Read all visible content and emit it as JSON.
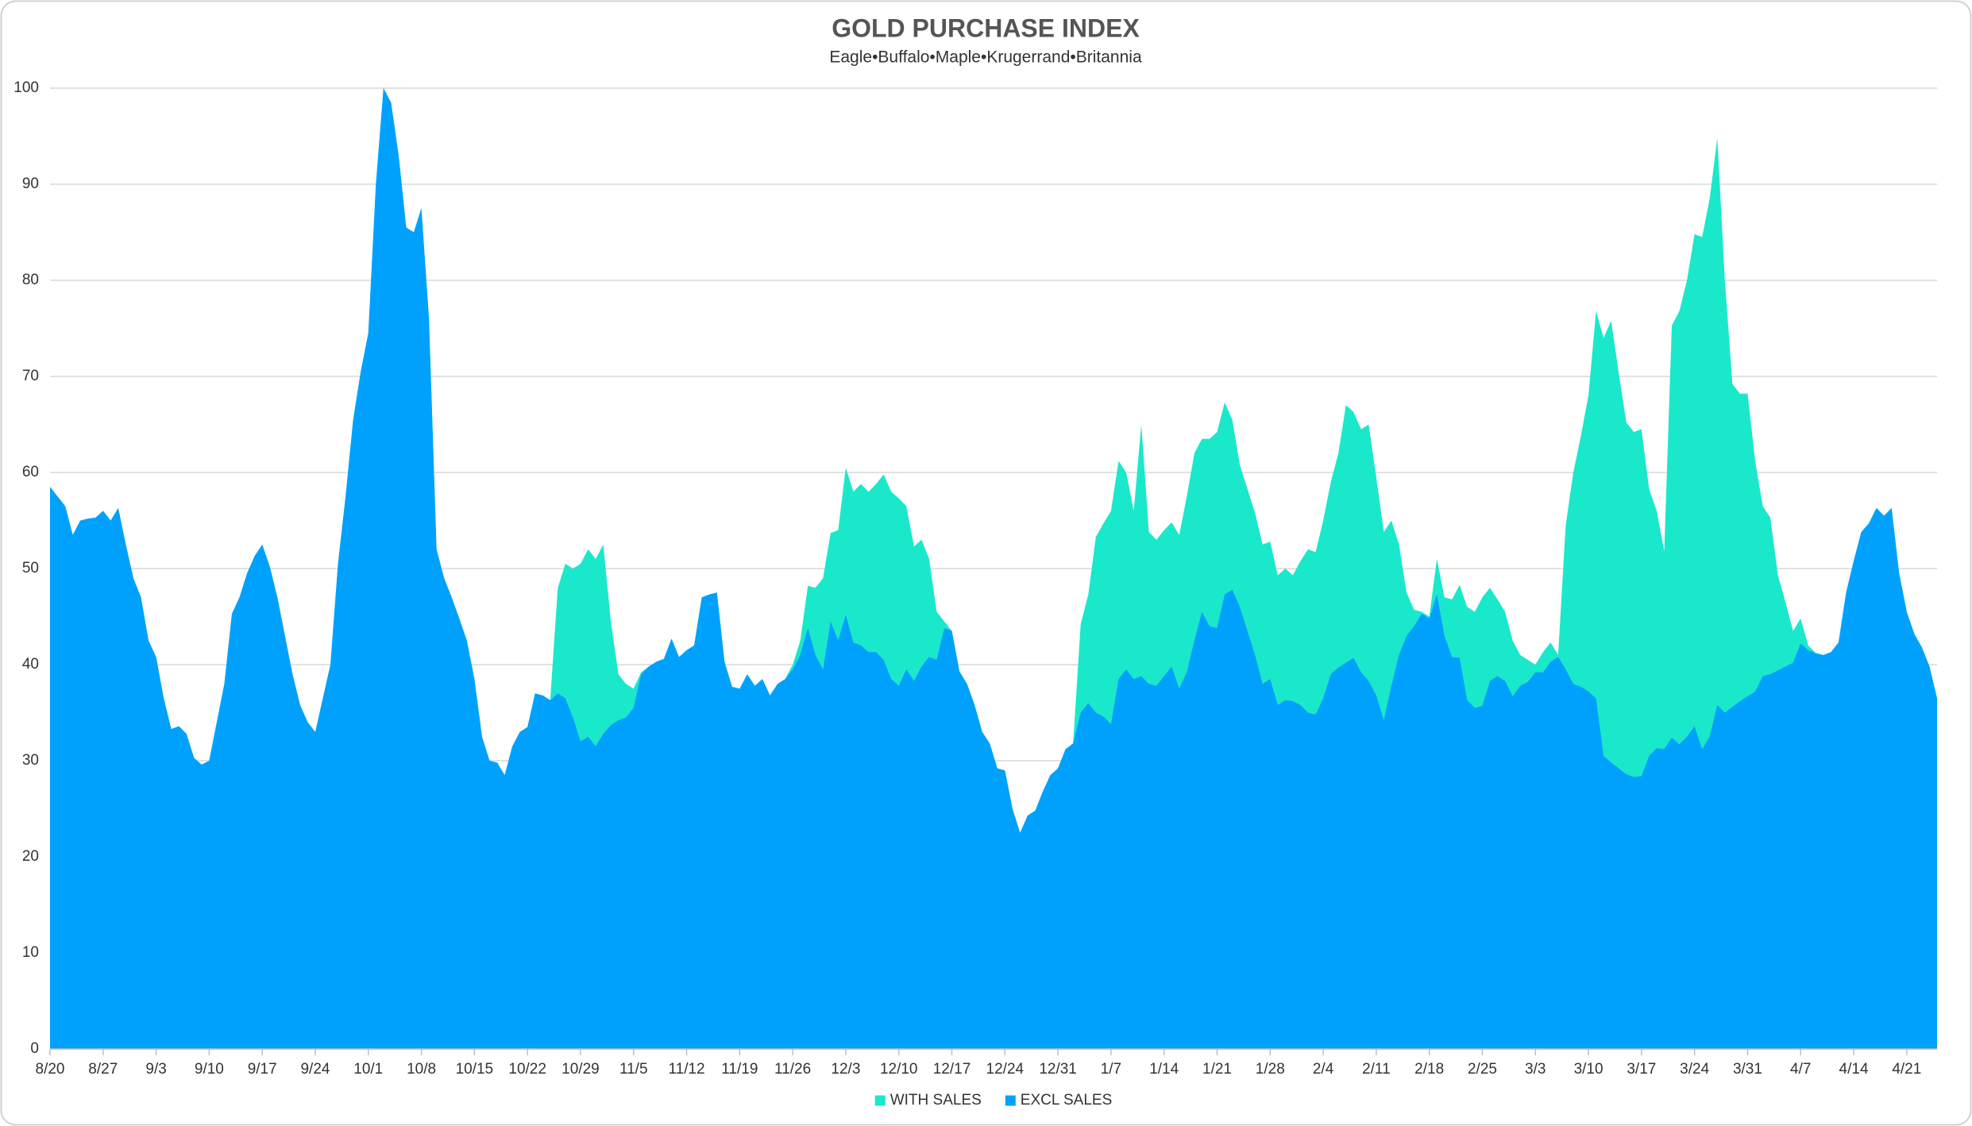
{
  "chart_data": {
    "type": "area",
    "title": "GOLD PURCHASE INDEX",
    "subtitle": "Eagle•Buffalo•Maple•Krugerrand•Britannia",
    "categories": [
      "8/20",
      null,
      null,
      null,
      null,
      null,
      null,
      "8/27",
      null,
      null,
      null,
      null,
      null,
      null,
      "9/3",
      null,
      null,
      null,
      null,
      null,
      null,
      "9/10",
      null,
      null,
      null,
      null,
      null,
      null,
      "9/17",
      null,
      null,
      null,
      null,
      null,
      null,
      "9/24",
      null,
      null,
      null,
      null,
      null,
      null,
      "10/1",
      null,
      null,
      null,
      null,
      null,
      null,
      "10/8",
      null,
      null,
      null,
      null,
      null,
      null,
      "10/15",
      null,
      null,
      null,
      null,
      null,
      null,
      "10/22",
      null,
      null,
      null,
      null,
      null,
      null,
      "10/29",
      null,
      null,
      null,
      null,
      null,
      null,
      "11/5",
      null,
      null,
      null,
      null,
      null,
      null,
      "11/12",
      null,
      null,
      null,
      null,
      null,
      null,
      "11/19",
      null,
      null,
      null,
      null,
      null,
      null,
      "11/26",
      null,
      null,
      null,
      null,
      null,
      null,
      "12/3",
      null,
      null,
      null,
      null,
      null,
      null,
      "12/10",
      null,
      null,
      null,
      null,
      null,
      null,
      "12/17",
      null,
      null,
      null,
      null,
      null,
      null,
      "12/24",
      null,
      null,
      null,
      null,
      null,
      null,
      "12/31",
      null,
      null,
      null,
      null,
      null,
      null,
      "1/7",
      null,
      null,
      null,
      null,
      null,
      null,
      "1/14",
      null,
      null,
      null,
      null,
      null,
      null,
      "1/21",
      null,
      null,
      null,
      null,
      null,
      null,
      "1/28",
      null,
      null,
      null,
      null,
      null,
      null,
      "2/4",
      null,
      null,
      null,
      null,
      null,
      null,
      "2/11",
      null,
      null,
      null,
      null,
      null,
      null,
      "2/18",
      null,
      null,
      null,
      null,
      null,
      null,
      "2/25",
      null,
      null,
      null,
      null,
      null,
      null,
      "3/3",
      null,
      null,
      null,
      null,
      null,
      null,
      "3/10",
      null,
      null,
      null,
      null,
      null,
      null,
      "3/17",
      null,
      null,
      null,
      null,
      null,
      null,
      "3/24",
      null,
      null,
      null,
      null,
      null,
      null,
      "3/31",
      null,
      null,
      null,
      null,
      null,
      null,
      "4/7",
      null,
      null,
      null,
      null,
      null,
      null,
      "4/14",
      null,
      null,
      null,
      null,
      null,
      null,
      "4/21",
      null,
      null,
      null,
      null
    ],
    "series": [
      {
        "name": "WITH SALES",
        "color": "#1ae8cb",
        "values": [
          58.5,
          57.5,
          56.5,
          53.5,
          55,
          55.2,
          55.3,
          56,
          55,
          56.3,
          52.5,
          49,
          47,
          42.5,
          40.8,
          36.5,
          33.3,
          33.6,
          32.8,
          30.3,
          29.6,
          30,
          34,
          38,
          45.3,
          47,
          49.5,
          51.3,
          52.5,
          50.2,
          47,
          43,
          39,
          35.8,
          34,
          33,
          36.5,
          40,
          50.5,
          57.5,
          65.5,
          70.5,
          74.5,
          90,
          100,
          98.5,
          93,
          85.5,
          85,
          87.5,
          76,
          52,
          49,
          47,
          44.8,
          42.5,
          38.5,
          32.5,
          30,
          29.8,
          28.5,
          31.5,
          33,
          33.5,
          37,
          36.8,
          36.3,
          48,
          50.5,
          50,
          50.5,
          52,
          51,
          52.5,
          44.5,
          39,
          38,
          37.5,
          39.2,
          39.8,
          40.3,
          40.6,
          42.7,
          40.8,
          41.5,
          42,
          47,
          47.3,
          47.5,
          40.3,
          37.7,
          37.5,
          39,
          37.8,
          38.5,
          36.8,
          38,
          38.5,
          40,
          42.5,
          48.2,
          48,
          49,
          53.7,
          54,
          60.5,
          58,
          58.8,
          58,
          58.8,
          59.8,
          58,
          57.3,
          56.5,
          52.3,
          53,
          51,
          45.5,
          44.5,
          43.5,
          39.3,
          38,
          35.8,
          33,
          31.8,
          29.2,
          29,
          25,
          22.5,
          24.3,
          24.8,
          26.8,
          28.5,
          29.2,
          31.2,
          31.8,
          44.2,
          47.3,
          53.3,
          54.7,
          56,
          61.2,
          60,
          56,
          65,
          53.8,
          53,
          54,
          54.8,
          53.5,
          57.5,
          62,
          63.5,
          63.5,
          64.2,
          67.3,
          65.5,
          60.8,
          58.3,
          55.8,
          52.5,
          52.8,
          49.3,
          50,
          49.3,
          50.8,
          52,
          51.7,
          55,
          59,
          62,
          67,
          66.3,
          64.5,
          65,
          59.5,
          53.8,
          55,
          52.5,
          47.5,
          45.7,
          45.5,
          45,
          51,
          47,
          46.8,
          48.3,
          46,
          45.5,
          47,
          48,
          46.8,
          45.5,
          42.5,
          41,
          40.5,
          40,
          41.3,
          42.3,
          41,
          54.5,
          60,
          63.8,
          68,
          76.8,
          74,
          75.8,
          70.3,
          65.2,
          64.2,
          64.5,
          58.3,
          56,
          51.8,
          75.3,
          76.8,
          80,
          84.8,
          84.5,
          88.5,
          94.8,
          80,
          69.2,
          68.2,
          68.2,
          61.2,
          56.5,
          55.3,
          49.3,
          46.5,
          43.5,
          44.8,
          42,
          41.2,
          41,
          41.3,
          42.3,
          47.5,
          50.8,
          53.8,
          54.7,
          56.3,
          55.5,
          56.3,
          49.5,
          45.5,
          43.2,
          41.8,
          39.8,
          36.5
        ]
      },
      {
        "name": "EXCL SALES",
        "color": "#00a1fd",
        "values": [
          58.5,
          57.5,
          56.5,
          53.5,
          55,
          55.2,
          55.3,
          56,
          55,
          56.3,
          52.5,
          49,
          47,
          42.5,
          40.8,
          36.5,
          33.3,
          33.6,
          32.8,
          30.3,
          29.6,
          30,
          34,
          38,
          45.3,
          47,
          49.5,
          51.3,
          52.5,
          50.2,
          47,
          43,
          39,
          35.8,
          34,
          33,
          36.5,
          40,
          50.5,
          57.5,
          65.5,
          70.5,
          74.5,
          90,
          100,
          98.5,
          93,
          85.5,
          85,
          87.5,
          76,
          52,
          49,
          47,
          44.8,
          42.5,
          38.5,
          32.5,
          30,
          29.8,
          28.5,
          31.5,
          33,
          33.5,
          37,
          36.8,
          36.3,
          37,
          36.5,
          34.5,
          32,
          32.5,
          31.5,
          32.8,
          33.7,
          34.2,
          34.5,
          35.5,
          39,
          39.8,
          40.3,
          40.6,
          42.7,
          40.8,
          41.5,
          42,
          47,
          47.3,
          47.5,
          40.3,
          37.7,
          37.5,
          39,
          37.8,
          38.5,
          36.8,
          38,
          38.5,
          39.5,
          41,
          43.8,
          41,
          39.5,
          44.5,
          42.5,
          45.2,
          42.3,
          42,
          41.3,
          41.3,
          40.5,
          38.5,
          37.8,
          39.5,
          38.3,
          39.8,
          40.8,
          40.5,
          43.8,
          43.5,
          39.3,
          38,
          35.8,
          33,
          31.8,
          29.2,
          29,
          25,
          22.5,
          24.3,
          24.8,
          26.8,
          28.5,
          29.2,
          31.2,
          31.8,
          35,
          36,
          35,
          34.6,
          33.8,
          38.5,
          39.5,
          38.5,
          38.8,
          38,
          37.8,
          38.8,
          39.8,
          37.5,
          39.2,
          42.5,
          45.5,
          44,
          43.8,
          47.3,
          47.8,
          46,
          43.5,
          41,
          38,
          38.5,
          35.8,
          36.3,
          36.2,
          35.8,
          35,
          34.8,
          36.5,
          39,
          39.7,
          40.2,
          40.7,
          39.2,
          38.3,
          36.8,
          34.2,
          37.8,
          41,
          43,
          44,
          45.3,
          44.8,
          47.3,
          43,
          40.8,
          40.7,
          36.3,
          35.5,
          35.7,
          38.3,
          38.8,
          38.3,
          36.7,
          37.8,
          38.2,
          39.2,
          39.2,
          40.3,
          40.8,
          39.5,
          38,
          37.7,
          37.2,
          36.5,
          30.5,
          29.8,
          29.2,
          28.6,
          28.3,
          28.4,
          30.5,
          31.3,
          31.2,
          32.4,
          31.7,
          32.5,
          33.6,
          31.2,
          32.5,
          35.8,
          35,
          35.6,
          36.2,
          36.7,
          37.2,
          38.8,
          39,
          39.4,
          39.8,
          40.2,
          42.2,
          41.5,
          41.2,
          41,
          41.3,
          42.3,
          47.5,
          50.8,
          53.8,
          54.7,
          56.3,
          55.5,
          56.3,
          49.5,
          45.5,
          43.2,
          41.8,
          39.8,
          36.5
        ]
      }
    ],
    "ylim": [
      0,
      100
    ],
    "yticks": [
      0,
      10,
      20,
      30,
      40,
      50,
      60,
      70,
      80,
      90,
      100
    ],
    "grid": true,
    "legend": "bottom"
  }
}
